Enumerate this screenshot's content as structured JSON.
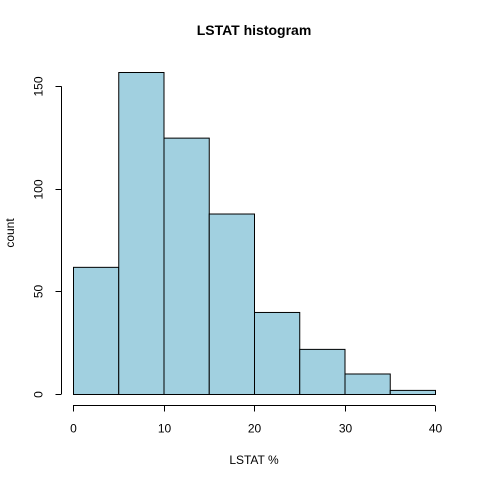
{
  "chart_data": {
    "type": "bar",
    "title": "LSTAT histogram",
    "xlabel": "LSTAT %",
    "ylabel": "count",
    "bins": [
      {
        "start": 0,
        "end": 5,
        "count": 62
      },
      {
        "start": 5,
        "end": 10,
        "count": 157
      },
      {
        "start": 10,
        "end": 15,
        "count": 125
      },
      {
        "start": 15,
        "end": 20,
        "count": 88
      },
      {
        "start": 20,
        "end": 25,
        "count": 40
      },
      {
        "start": 25,
        "end": 30,
        "count": 22
      },
      {
        "start": 30,
        "end": 35,
        "count": 10
      },
      {
        "start": 35,
        "end": 40,
        "count": 2
      }
    ],
    "xlim": [
      0,
      40
    ],
    "ylim": [
      0,
      157
    ],
    "x_ticks": [
      "0",
      "10",
      "20",
      "30",
      "40"
    ],
    "y_ticks": [
      "0",
      "50",
      "100",
      "150"
    ],
    "bar_color": "#a1d0e0",
    "grid": false
  }
}
